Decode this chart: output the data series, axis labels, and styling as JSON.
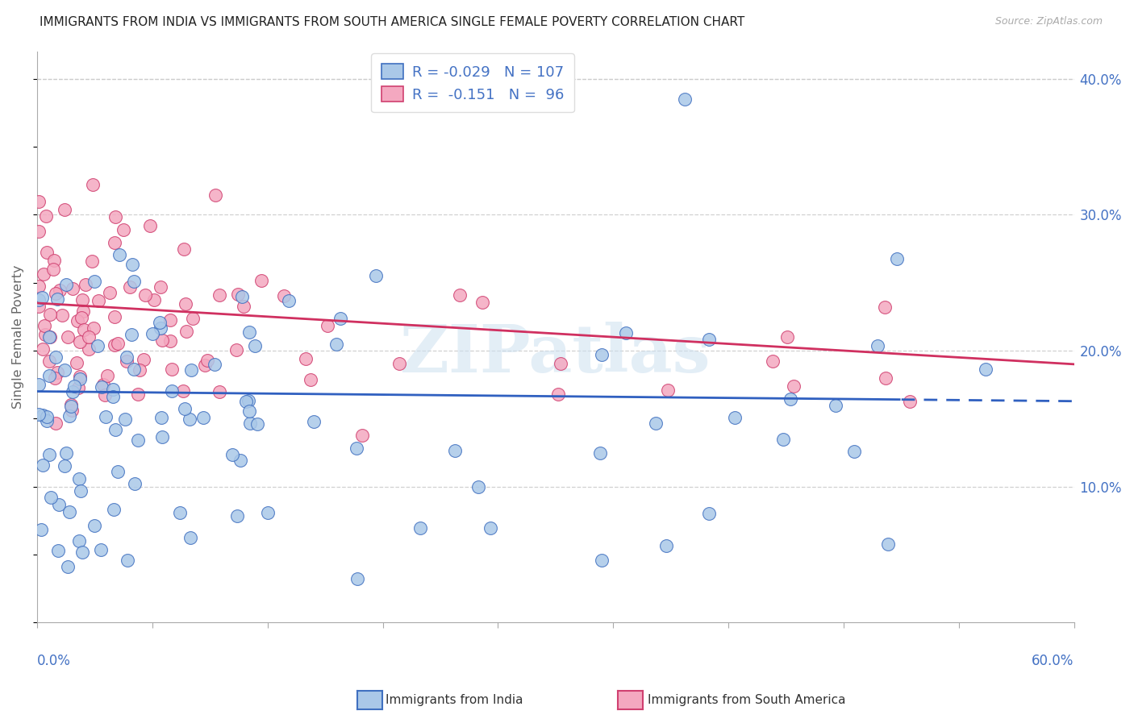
{
  "title": "IMMIGRANTS FROM INDIA VS IMMIGRANTS FROM SOUTH AMERICA SINGLE FEMALE POVERTY CORRELATION CHART",
  "source": "Source: ZipAtlas.com",
  "ylabel": "Single Female Poverty",
  "legend_india": "Immigrants from India",
  "legend_sa": "Immigrants from South America",
  "R_india": -0.029,
  "N_india": 107,
  "R_sa": -0.151,
  "N_sa": 96,
  "color_india": "#aac8e8",
  "color_sa": "#f4a8c0",
  "edge_india": "#4070c0",
  "edge_sa": "#d04070",
  "line_color_india": "#3060c0",
  "line_color_sa": "#d03060",
  "background_color": "#ffffff",
  "grid_color": "#cccccc",
  "title_color": "#222222",
  "axis_color": "#4472c4",
  "xlim": [
    0.0,
    0.6
  ],
  "ylim": [
    0.0,
    0.42
  ],
  "yticks": [
    0.1,
    0.2,
    0.3,
    0.4
  ],
  "ytick_labels": [
    "10.0%",
    "20.0%",
    "30.0%",
    "40.0%"
  ],
  "india_intercept": 0.17,
  "india_slope": -0.012,
  "sa_intercept": 0.235,
  "sa_slope": -0.075
}
